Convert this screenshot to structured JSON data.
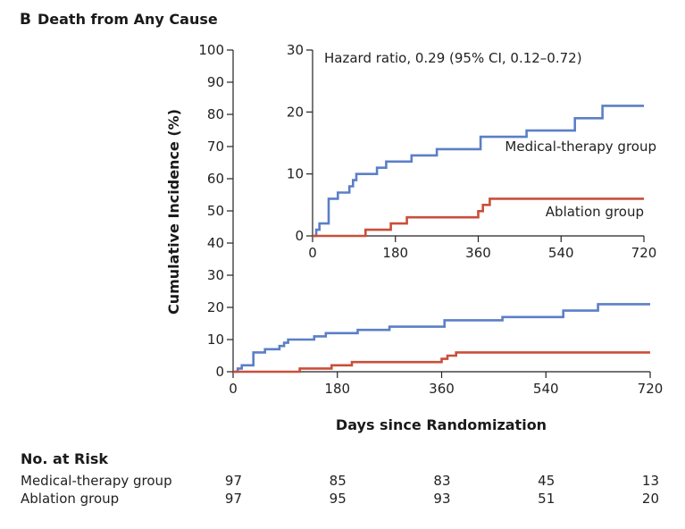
{
  "panel": {
    "letter": "B",
    "title": "Death from Any Cause"
  },
  "colors": {
    "medical": "#5b7fc7",
    "ablation": "#c94f3a",
    "axis": "#222222"
  },
  "chart_data": [
    {
      "type": "line",
      "role": "main",
      "xlabel": "Days since Randomization",
      "ylabel": "Cumulative Incidence (%)",
      "xlim": [
        0,
        720
      ],
      "ylim": [
        0,
        100
      ],
      "xticks": [
        0,
        180,
        360,
        540,
        720
      ],
      "yticks": [
        0,
        10,
        20,
        30,
        40,
        50,
        60,
        70,
        80,
        90,
        100
      ],
      "step": true,
      "series": [
        {
          "key": "medical",
          "x": [
            0,
            8,
            15,
            35,
            55,
            80,
            88,
            95,
            140,
            160,
            215,
            270,
            365,
            465,
            570,
            630,
            720
          ],
          "y": [
            0,
            1,
            2,
            6,
            7,
            8,
            9,
            10,
            11,
            12,
            13,
            14,
            16,
            17,
            19,
            21,
            21
          ]
        },
        {
          "key": "ablation",
          "x": [
            0,
            115,
            170,
            205,
            360,
            370,
            385,
            720
          ],
          "y": [
            0,
            1,
            2,
            3,
            4,
            5,
            6,
            6
          ]
        }
      ]
    },
    {
      "type": "line",
      "role": "inset",
      "annotation": "Hazard ratio, 0.29 (95% CI, 0.12–0.72)",
      "xlim": [
        0,
        720
      ],
      "ylim": [
        0,
        30
      ],
      "xticks": [
        0,
        180,
        360,
        540,
        720
      ],
      "yticks": [
        0,
        10,
        20,
        30
      ],
      "step": true,
      "series": [
        {
          "key": "medical",
          "name": "Medical-therapy group",
          "x": [
            0,
            8,
            15,
            35,
            55,
            80,
            88,
            95,
            140,
            160,
            215,
            270,
            365,
            465,
            570,
            630,
            720
          ],
          "y": [
            0,
            1,
            2,
            6,
            7,
            8,
            9,
            10,
            11,
            12,
            13,
            14,
            16,
            17,
            19,
            21,
            21
          ]
        },
        {
          "key": "ablation",
          "name": "Ablation group",
          "x": [
            0,
            115,
            170,
            205,
            360,
            370,
            385,
            720
          ],
          "y": [
            0,
            1,
            2,
            3,
            4,
            5,
            6,
            6
          ]
        }
      ]
    }
  ],
  "risk_table": {
    "title": "No. at Risk",
    "rows": [
      {
        "label": "Medical-therapy group",
        "values": [
          "97",
          "85",
          "83",
          "45",
          "13"
        ]
      },
      {
        "label": "Ablation group",
        "values": [
          "97",
          "95",
          "93",
          "51",
          "20"
        ]
      }
    ]
  }
}
